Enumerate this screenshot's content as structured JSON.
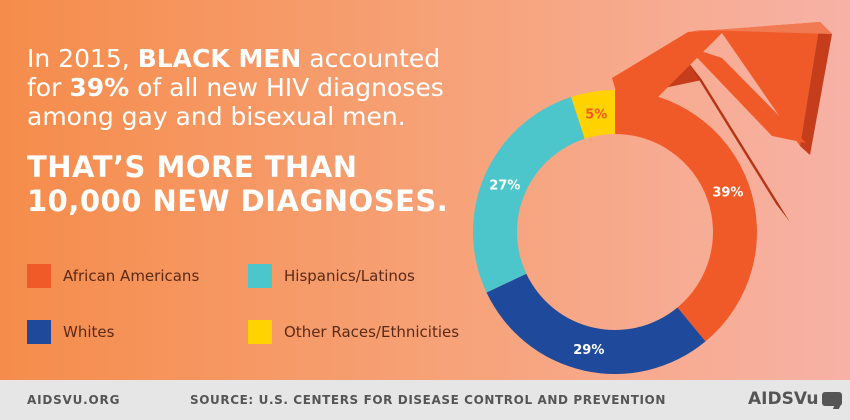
{
  "headline": {
    "part1": "In 2015, ",
    "bold1": "BLACK MEN",
    "part2": " accounted for ",
    "bold2": "39%",
    "part3": " of all new HIV diagnoses among gay and bisexual men."
  },
  "callout": "THAT’S MORE THAN 10,000 NEW DIAGNOSES.",
  "legend": [
    {
      "label": "African Americans",
      "color": "#f05a28"
    },
    {
      "label": "Hispanics/Latinos",
      "color": "#4cc5cb"
    },
    {
      "label": "Whites",
      "color": "#1f4a9b"
    },
    {
      "label": "Other Races/Ethnicities",
      "color": "#ffd200"
    }
  ],
  "chart_data": {
    "type": "pie",
    "title": "",
    "categories": [
      "African Americans",
      "Whites",
      "Hispanics/Latinos",
      "Other Races/Ethnicities"
    ],
    "values": [
      39,
      29,
      27,
      5
    ],
    "labels": [
      "39%",
      "29%",
      "27%",
      "5%"
    ],
    "colors": [
      "#f05a28",
      "#1f4a9b",
      "#4cc5cb",
      "#ffd200"
    ],
    "label_colors": [
      "#ffffff",
      "#ffffff",
      "#ffffff",
      "#f05a28"
    ],
    "donut": true
  },
  "footer": {
    "site": "AIDSVU.ORG",
    "source": "SOURCE: U.S. CENTERS FOR DISEASE CONTROL AND PREVENTION",
    "logo": "AIDSVu"
  }
}
